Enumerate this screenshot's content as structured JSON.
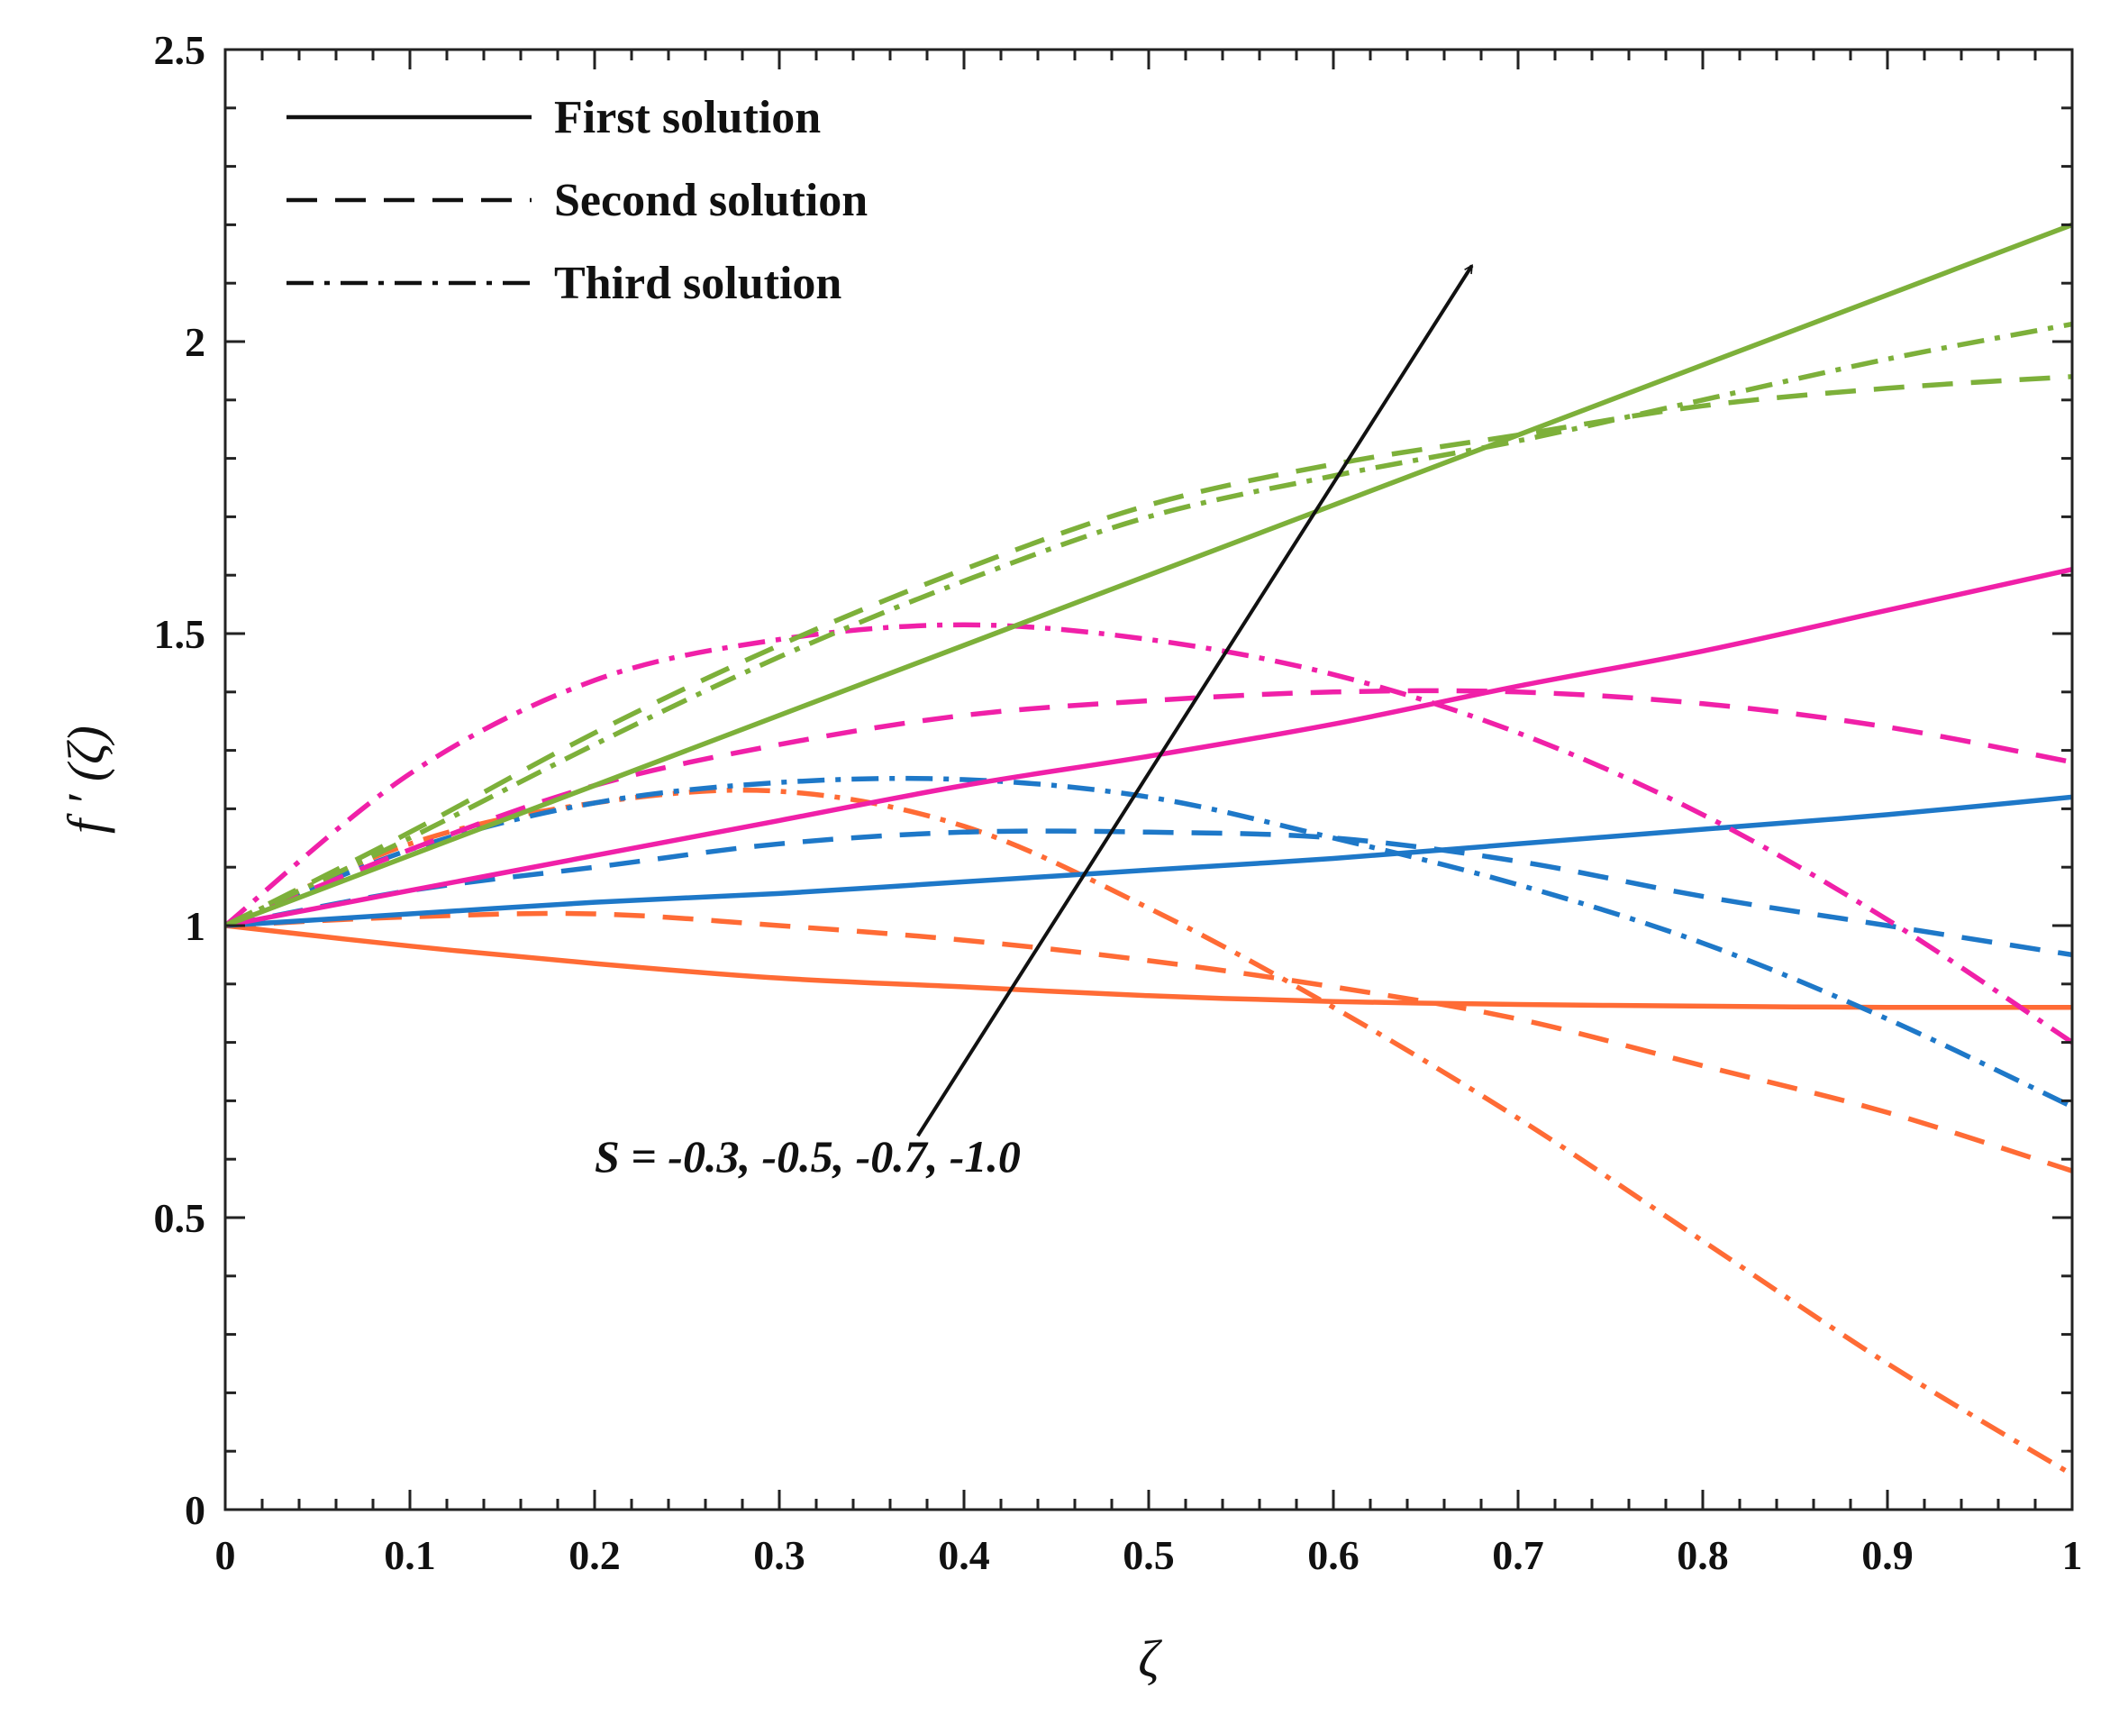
{
  "chart_data": {
    "type": "line",
    "xlabel": "ζ",
    "ylabel": "f ′ (ζ)",
    "xlim": [
      0,
      1
    ],
    "ylim": [
      0,
      2.5
    ],
    "xticks": [
      "0",
      "0.1",
      "0.2",
      "0.3",
      "0.4",
      "0.5",
      "0.6",
      "0.7",
      "0.8",
      "0.9",
      "1"
    ],
    "yticks": [
      "0",
      "0.5",
      "1",
      "1.5",
      "2",
      "2.5"
    ],
    "grid": false,
    "legend": {
      "position": "top-left",
      "entries": [
        {
          "label": "First solution",
          "style": "solid"
        },
        {
          "label": "Second solution",
          "style": "dashed"
        },
        {
          "label": "Third solution",
          "style": "dashdot"
        }
      ]
    },
    "annotation": {
      "text": "S = -0.3, -0.5, -0.7, -1.0",
      "arrow_from": [
        0.375,
        0.64
      ],
      "arrow_to": [
        0.675,
        2.13
      ]
    },
    "colors": {
      "S=-0.3": "#FF6B35",
      "S=-0.5": "#1E78C8",
      "S=-0.7": "#F020A8",
      "S=-1.0": "#7DB03A"
    },
    "x": [
      0,
      0.1,
      0.2,
      0.3,
      0.4,
      0.5,
      0.6,
      0.7,
      0.8,
      0.9,
      1.0
    ],
    "series": [
      {
        "name": "First solution, S = -0.3",
        "S": "-0.3",
        "solution": "First solution",
        "style": "solid",
        "color": "#FF6B35",
        "values": [
          1.0,
          0.965,
          0.935,
          0.91,
          0.895,
          0.88,
          0.87,
          0.865,
          0.862,
          0.86,
          0.86
        ]
      },
      {
        "name": "Second solution, S = -0.3",
        "S": "-0.3",
        "solution": "Second solution",
        "style": "dashed",
        "color": "#FF6B35",
        "values": [
          1.0,
          1.015,
          1.02,
          1.0,
          0.975,
          0.94,
          0.895,
          0.84,
          0.76,
          0.68,
          0.58
        ]
      },
      {
        "name": "Third solution, S = -0.3",
        "S": "-0.3",
        "solution": "Third solution",
        "style": "dashdot",
        "color": "#FF6B35",
        "values": [
          1.0,
          1.14,
          1.21,
          1.23,
          1.17,
          1.03,
          0.86,
          0.67,
          0.46,
          0.25,
          0.06
        ]
      },
      {
        "name": "First solution, S = -0.5",
        "S": "-0.5",
        "solution": "First solution",
        "style": "solid",
        "color": "#1E78C8",
        "values": [
          1.0,
          1.02,
          1.04,
          1.055,
          1.075,
          1.095,
          1.115,
          1.14,
          1.165,
          1.19,
          1.22
        ]
      },
      {
        "name": "Second solution, S = -0.5",
        "S": "-0.5",
        "solution": "Second solution",
        "style": "dashed",
        "color": "#1E78C8",
        "values": [
          1.0,
          1.06,
          1.1,
          1.14,
          1.16,
          1.16,
          1.15,
          1.11,
          1.05,
          1.0,
          0.95
        ]
      },
      {
        "name": "Third solution, S = -0.5",
        "S": "-0.5",
        "solution": "Third solution",
        "style": "dashdot",
        "color": "#1E78C8",
        "values": [
          1.0,
          1.13,
          1.21,
          1.245,
          1.25,
          1.22,
          1.15,
          1.07,
          0.97,
          0.84,
          0.69
        ]
      },
      {
        "name": "First solution, S = -0.7",
        "S": "-0.7",
        "solution": "First solution",
        "style": "solid",
        "color": "#F020A8",
        "values": [
          1.0,
          1.06,
          1.12,
          1.18,
          1.24,
          1.29,
          1.345,
          1.41,
          1.47,
          1.54,
          1.61
        ]
      },
      {
        "name": "Second solution, S = -0.7",
        "S": "-0.7",
        "solution": "Second solution",
        "style": "dashed",
        "color": "#F020A8",
        "values": [
          1.0,
          1.13,
          1.24,
          1.31,
          1.36,
          1.385,
          1.4,
          1.4,
          1.38,
          1.34,
          1.28
        ]
      },
      {
        "name": "Third solution, S = -0.7",
        "S": "-0.7",
        "solution": "Third solution",
        "style": "dashdot",
        "color": "#F020A8",
        "values": [
          1.0,
          1.26,
          1.42,
          1.49,
          1.515,
          1.49,
          1.43,
          1.33,
          1.19,
          1.01,
          0.8
        ]
      },
      {
        "name": "First solution, S = -1.0",
        "S": "-1.0",
        "solution": "First solution",
        "style": "solid",
        "color": "#7DB03A",
        "values": [
          1.0,
          1.12,
          1.24,
          1.36,
          1.48,
          1.6,
          1.72,
          1.84,
          1.96,
          2.08,
          2.2
        ]
      },
      {
        "name": "Second solution, S = -1.0",
        "S": "-1.0",
        "solution": "Second solution",
        "style": "dashed",
        "color": "#7DB03A",
        "values": [
          1.0,
          1.16,
          1.33,
          1.48,
          1.61,
          1.72,
          1.79,
          1.84,
          1.89,
          1.92,
          1.94
        ]
      },
      {
        "name": "Third solution, S = -1.0",
        "S": "-1.0",
        "solution": "Third solution",
        "style": "dashdot",
        "color": "#7DB03A",
        "values": [
          1.0,
          1.15,
          1.31,
          1.46,
          1.59,
          1.7,
          1.77,
          1.83,
          1.9,
          1.97,
          2.03
        ]
      }
    ]
  }
}
